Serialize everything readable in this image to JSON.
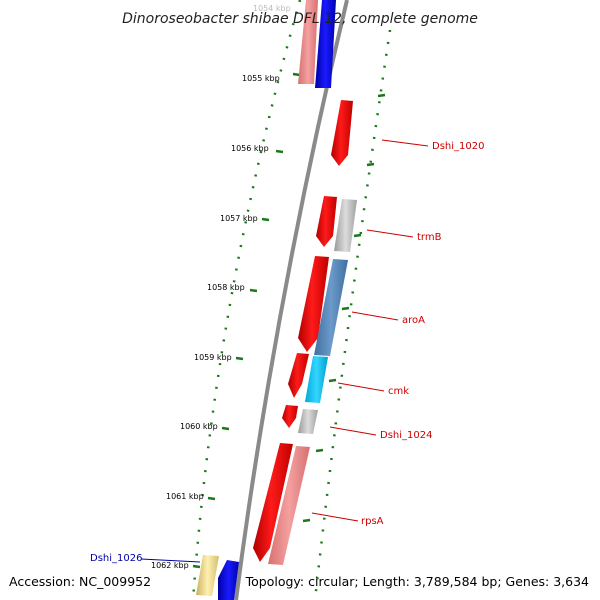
{
  "title": "Dinoroseobacter shibae DFL 12, complete genome",
  "accession": "Accession: NC_009952",
  "topology": "Topology: circular; Length: 3,789,584 bp; Genes: 3,634",
  "colors": {
    "backbone": "#8a8a8a",
    "tick_dots": "#1a7a1a",
    "label_red": "#cc0000",
    "label_blue": "#0000aa"
  },
  "kbp_labels": [
    "1054 kbp",
    "1055 kbp",
    "1056 kbp",
    "1057 kbp",
    "1058 kbp",
    "1059 kbp",
    "1060 kbp",
    "1061 kbp",
    "1062 kbp"
  ],
  "genes": [
    {
      "name": "Dshi_1020",
      "color": "red"
    },
    {
      "name": "trmB",
      "color": "red"
    },
    {
      "name": "aroA",
      "color": "red"
    },
    {
      "name": "cmk",
      "color": "red"
    },
    {
      "name": "Dshi_1024",
      "color": "red"
    },
    {
      "name": "rpsA",
      "color": "red"
    },
    {
      "name": "Dshi_1026",
      "color": "blue"
    }
  ]
}
